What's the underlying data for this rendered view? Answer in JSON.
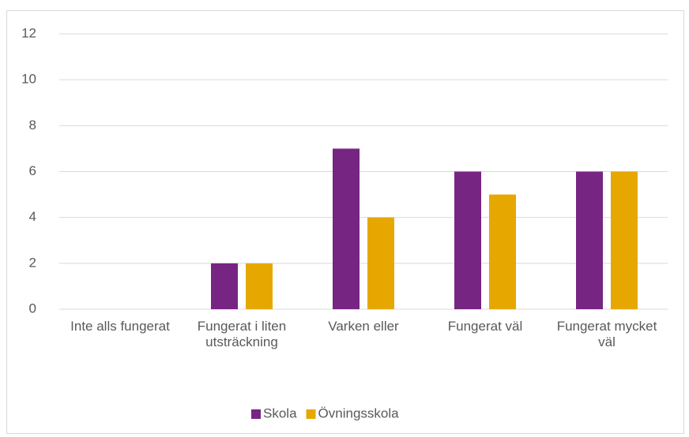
{
  "chart_data": {
    "type": "bar",
    "categories": [
      "Inte alls fungerat",
      "Fungerat i liten utsträckning",
      "Varken eller",
      "Fungerat väl",
      "Fungerat mycket väl"
    ],
    "series": [
      {
        "name": "Skola",
        "color": "#772583",
        "values": [
          0,
          2,
          7,
          6,
          6
        ]
      },
      {
        "name": "Övningsskola",
        "color": "#e6a800",
        "values": [
          0,
          2,
          4,
          5,
          6
        ]
      }
    ],
    "ylim": [
      0,
      12
    ],
    "yticks": [
      0,
      2,
      4,
      6,
      8,
      10,
      12
    ],
    "grid": true,
    "legend": "bottom"
  }
}
